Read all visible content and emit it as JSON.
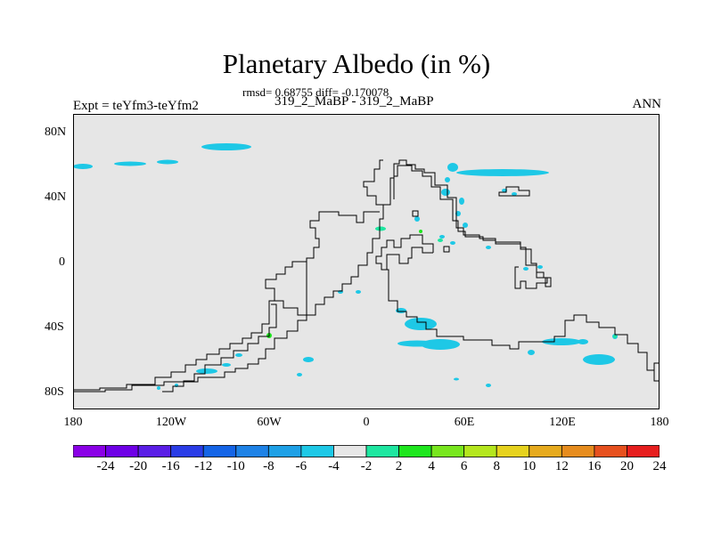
{
  "title": "Planetary Albedo (in %)",
  "stats_line": "rmsd= 0.68755 diff= -0.170078",
  "subtitle": "319_2_MaBP - 319_2_MaBP",
  "experiment_label": "Expt = teYfm3-teYfm2",
  "season_label": "ANN",
  "map": {
    "background_color": "#e6e6e6",
    "coastline_color": "#000000",
    "latitude_ticks": [
      "80N",
      "40N",
      "0",
      "40S",
      "80S"
    ],
    "longitude_ticks": [
      "180",
      "120W",
      "60W",
      "0",
      "60E",
      "120E",
      "180"
    ]
  },
  "colorbar": {
    "colors": [
      "#8a00e6",
      "#6e00e6",
      "#5a1ee6",
      "#2a3ce6",
      "#1464e6",
      "#1e82e6",
      "#1ea0e6",
      "#1ec8e6",
      "#e6e6e6",
      "#1ee6a0",
      "#1ee61e",
      "#78e61e",
      "#b4e61e",
      "#e6d21e",
      "#e6aa1e",
      "#e68c1e",
      "#e6501e",
      "#e61e1e"
    ],
    "labels": [
      "-24",
      "-20",
      "-16",
      "-12",
      "-10",
      "-8",
      "-6",
      "-4",
      "-2",
      "2",
      "4",
      "6",
      "8",
      "10",
      "12",
      "16",
      "20",
      "24"
    ]
  }
}
